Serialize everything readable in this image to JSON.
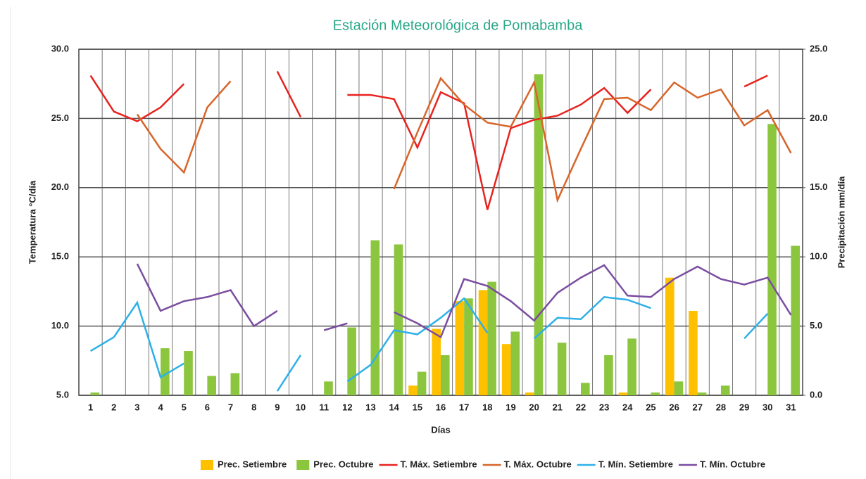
{
  "chart_data": {
    "type": "bar_line",
    "title": "Estación Meteorológica de Pomabamba",
    "x_label": "Días",
    "y_label": "Temperatura °C/día",
    "y2_label": "Precipitación mm/día",
    "categories": [
      "1",
      "2",
      "3",
      "4",
      "5",
      "6",
      "7",
      "8",
      "9",
      "10",
      "11",
      "12",
      "13",
      "14",
      "15",
      "16",
      "17",
      "18",
      "19",
      "20",
      "21",
      "22",
      "23",
      "24",
      "25",
      "26",
      "27",
      "28",
      "29",
      "30",
      "31"
    ],
    "ylim": [
      5,
      30
    ],
    "yticks": [
      {
        "value": 5,
        "label": "5.0"
      },
      {
        "value": 10,
        "label": "10.0"
      },
      {
        "value": 15,
        "label": "15.0"
      },
      {
        "value": 20,
        "label": "20.0"
      },
      {
        "value": 25,
        "label": "25.0"
      },
      {
        "value": 30,
        "label": "30.0"
      }
    ],
    "y2lim": [
      0,
      25
    ],
    "y2ticks": [
      {
        "value": 0,
        "label": "0.0"
      },
      {
        "value": 5,
        "label": "5.0"
      },
      {
        "value": 10,
        "label": "10.0"
      },
      {
        "value": 15,
        "label": "15.0"
      },
      {
        "value": 20,
        "label": "20.0"
      },
      {
        "value": 25,
        "label": "25.0"
      }
    ],
    "grid": true,
    "legend": "bottom",
    "series": [
      {
        "name": "Prec. Setiembre",
        "kind": "bar",
        "axis": "y2",
        "color": "#ffc000",
        "values": [
          0,
          0,
          0,
          0,
          0,
          0,
          0,
          0,
          0,
          0,
          0,
          0,
          0,
          0,
          0.7,
          4.8,
          6.8,
          7.6,
          3.7,
          0.2,
          0,
          0,
          0,
          0.2,
          0,
          8.5,
          6.1,
          0,
          0,
          0,
          0
        ]
      },
      {
        "name": "Prec. Octubre",
        "kind": "bar",
        "axis": "y2",
        "color": "#8cc63f",
        "values": [
          0.2,
          0,
          0,
          3.4,
          3.2,
          1.4,
          1.6,
          0,
          0,
          0,
          1.0,
          4.9,
          11.2,
          10.9,
          1.7,
          2.9,
          7.0,
          8.2,
          4.6,
          23.2,
          3.8,
          0.9,
          2.9,
          4.1,
          0.2,
          1.0,
          0.2,
          0.7,
          0,
          19.6,
          10.8
        ]
      },
      {
        "name": "T. Máx. Setiembre",
        "kind": "line",
        "axis": "y",
        "color": "#e8231f",
        "values": [
          28.1,
          25.5,
          24.8,
          25.8,
          27.5,
          null,
          null,
          null,
          28.4,
          25.1,
          null,
          26.7,
          26.7,
          26.4,
          22.9,
          26.9,
          26.1,
          18.4,
          24.3,
          24.9,
          25.2,
          26.0,
          27.2,
          25.4,
          27.1,
          null,
          null,
          null,
          27.3,
          28.1,
          null
        ]
      },
      {
        "name": "T. Máx. Octubre",
        "kind": "line",
        "axis": "y",
        "color": "#d8652a",
        "values": [
          null,
          null,
          25.3,
          22.8,
          21.1,
          25.8,
          27.7,
          null,
          null,
          null,
          null,
          null,
          null,
          19.9,
          24.0,
          27.9,
          26.0,
          24.7,
          24.4,
          27.6,
          19.1,
          22.8,
          26.4,
          26.5,
          25.6,
          27.6,
          26.5,
          27.1,
          24.5,
          25.6,
          22.5
        ]
      },
      {
        "name": "T. Mín. Setiembre",
        "kind": "line",
        "axis": "y",
        "color": "#2eb0e8",
        "values": [
          8.2,
          9.2,
          11.7,
          6.3,
          7.3,
          null,
          null,
          null,
          5.3,
          7.9,
          null,
          6.0,
          7.2,
          9.7,
          9.4,
          10.6,
          12.0,
          9.5,
          null,
          9.1,
          10.6,
          10.5,
          12.1,
          11.9,
          11.3,
          null,
          null,
          null,
          9.1,
          10.9,
          null
        ]
      },
      {
        "name": "T. Mín. Octubre",
        "kind": "line",
        "axis": "y",
        "color": "#7a4ea0",
        "values": [
          null,
          null,
          14.5,
          11.1,
          11.8,
          12.1,
          12.6,
          10.0,
          11.1,
          null,
          9.7,
          10.2,
          null,
          11.0,
          10.2,
          9.2,
          13.4,
          12.9,
          11.8,
          10.4,
          12.4,
          13.5,
          14.4,
          12.2,
          12.1,
          13.4,
          14.3,
          13.4,
          13.0,
          13.5,
          10.8
        ]
      }
    ]
  }
}
